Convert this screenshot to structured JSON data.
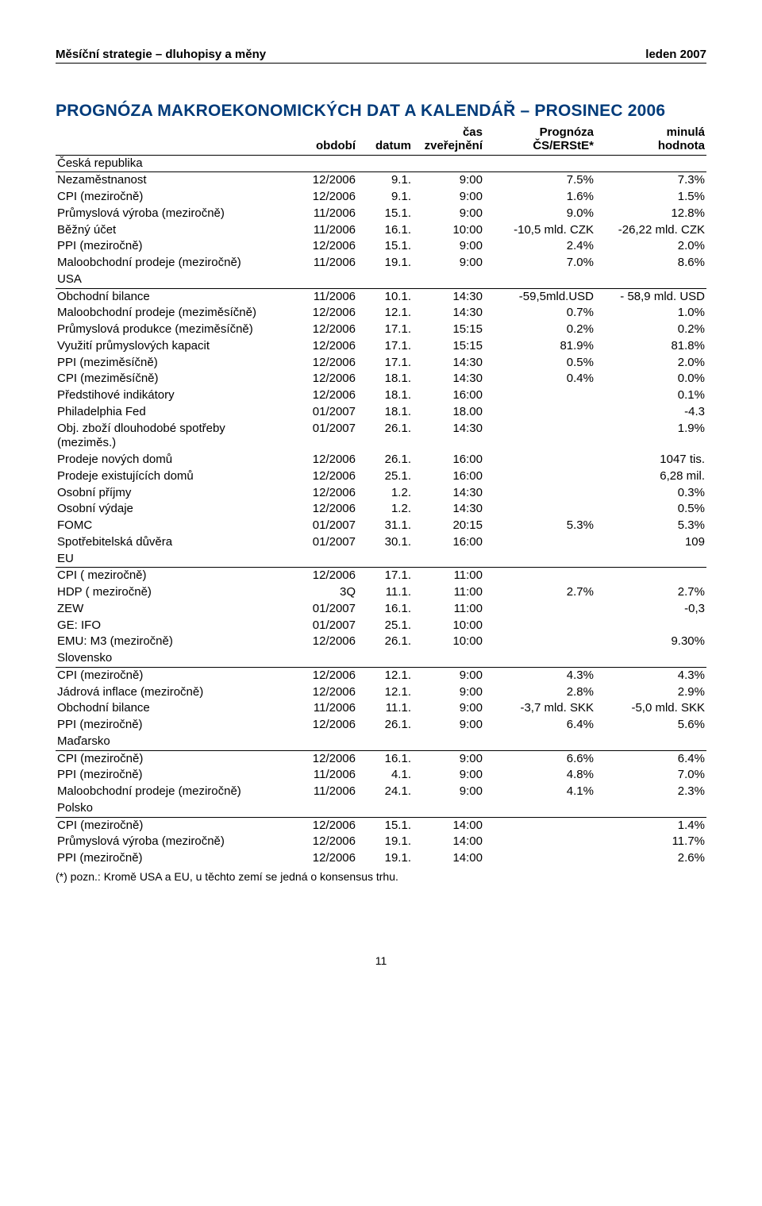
{
  "header": {
    "left": "Měsíční strategie – dluhopisy a měny",
    "right": "leden 2007"
  },
  "title": "PROGNÓZA MAKROEKONOMICKÝCH DAT A KALENDÁŘ – PROSINEC 2006",
  "table": {
    "head": {
      "c_period": "období",
      "c_date": "datum",
      "c_time_l1": "čas",
      "c_time_l2": "zveřejnění",
      "c_forecast_l1": "Prognóza",
      "c_forecast_l2": "ČS/ERStE*",
      "c_prev_l1": "minulá",
      "c_prev_l2": "hodnota"
    },
    "sections": [
      {
        "label": "Česká republika",
        "rows": [
          {
            "name": "Nezaměstnanost",
            "period": "12/2006",
            "date": "9.1.",
            "time": "9:00",
            "forecast": "7.5%",
            "prev": "7.3%"
          },
          {
            "name": "CPI (meziročně)",
            "period": "12/2006",
            "date": "9.1.",
            "time": "9:00",
            "forecast": "1.6%",
            "prev": "1.5%"
          },
          {
            "name": "Průmyslová výroba (meziročně)",
            "period": "11/2006",
            "date": "15.1.",
            "time": "9:00",
            "forecast": "9.0%",
            "prev": "12.8%"
          },
          {
            "name": "Běžný účet",
            "period": "11/2006",
            "date": "16.1.",
            "time": "10:00",
            "forecast": "-10,5 mld. CZK",
            "prev": "-26,22 mld. CZK"
          },
          {
            "name": "PPI (meziročně)",
            "period": "12/2006",
            "date": "15.1.",
            "time": "9:00",
            "forecast": "2.4%",
            "prev": "2.0%"
          },
          {
            "name": "Maloobchodní prodeje (meziročně)",
            "period": "11/2006",
            "date": "19.1.",
            "time": "9:00",
            "forecast": "7.0%",
            "prev": "8.6%"
          }
        ]
      },
      {
        "label": "USA",
        "rows": [
          {
            "name": "Obchodní bilance",
            "period": "11/2006",
            "date": "10.1.",
            "time": "14:30",
            "forecast": "-59,5mld.USD",
            "prev": "- 58,9 mld. USD"
          },
          {
            "name": "Maloobchodní prodeje (meziměsíčně)",
            "period": "12/2006",
            "date": "12.1.",
            "time": "14:30",
            "forecast": "0.7%",
            "prev": "1.0%"
          },
          {
            "name": "Průmyslová produkce (meziměsíčně)",
            "period": "12/2006",
            "date": "17.1.",
            "time": "15:15",
            "forecast": "0.2%",
            "prev": "0.2%"
          },
          {
            "name": "Využití průmyslových kapacit",
            "period": "12/2006",
            "date": "17.1.",
            "time": "15:15",
            "forecast": "81.9%",
            "prev": "81.8%"
          },
          {
            "name": "PPI (meziměsíčně)",
            "period": "12/2006",
            "date": "17.1.",
            "time": "14:30",
            "forecast": "0.5%",
            "prev": "2.0%"
          },
          {
            "name": "CPI (meziměsíčně)",
            "period": "12/2006",
            "date": "18.1.",
            "time": "14:30",
            "forecast": "0.4%",
            "prev": "0.0%"
          },
          {
            "name": "Předstihové indikátory",
            "period": "12/2006",
            "date": "18.1.",
            "time": "16:00",
            "forecast": "",
            "prev": "0.1%"
          },
          {
            "name": "Philadelphia Fed",
            "period": "01/2007",
            "date": "18.1.",
            "time": "18.00",
            "forecast": "",
            "prev": "-4.3"
          },
          {
            "name": "Obj. zboží dlouhodobé spotřeby (meziměs.)",
            "period": "01/2007",
            "date": "26.1.",
            "time": "14:30",
            "forecast": "",
            "prev": "1.9%"
          },
          {
            "name": "Prodeje nových domů",
            "period": "12/2006",
            "date": "26.1.",
            "time": "16:00",
            "forecast": "",
            "prev": "1047 tis."
          },
          {
            "name": "Prodeje existujících domů",
            "period": "12/2006",
            "date": "25.1.",
            "time": "16:00",
            "forecast": "",
            "prev": "6,28 mil."
          },
          {
            "name": "Osobní příjmy",
            "period": "12/2006",
            "date": "1.2.",
            "time": "14:30",
            "forecast": "",
            "prev": "0.3%"
          },
          {
            "name": "Osobní výdaje",
            "period": "12/2006",
            "date": "1.2.",
            "time": "14:30",
            "forecast": "",
            "prev": "0.5%"
          },
          {
            "name": "FOMC",
            "period": "01/2007",
            "date": "31.1.",
            "time": "20:15",
            "forecast": "5.3%",
            "prev": "5.3%"
          },
          {
            "name": "Spotřebitelská důvěra",
            "period": "01/2007",
            "date": "30.1.",
            "time": "16:00",
            "forecast": "",
            "prev": "109"
          }
        ]
      },
      {
        "label": "EU",
        "rows": [
          {
            "name": "CPI ( meziročně)",
            "period": "12/2006",
            "date": "17.1.",
            "time": "11:00",
            "forecast": "",
            "prev": ""
          },
          {
            "name": "HDP ( meziročně)",
            "period": "3Q",
            "date": "11.1.",
            "time": "11:00",
            "forecast": "2.7%",
            "prev": "2.7%"
          },
          {
            "name": "ZEW",
            "period": "01/2007",
            "date": "16.1.",
            "time": "11:00",
            "forecast": "",
            "prev": "-0,3"
          },
          {
            "name": "GE: IFO",
            "period": "01/2007",
            "date": "25.1.",
            "time": "10:00",
            "forecast": "",
            "prev": ""
          },
          {
            "name": "EMU: M3 (meziročně)",
            "period": "12/2006",
            "date": "26.1.",
            "time": "10:00",
            "forecast": "",
            "prev": "9.30%"
          }
        ]
      },
      {
        "label": "Slovensko",
        "rows": [
          {
            "name": "CPI (meziročně)",
            "period": "12/2006",
            "date": "12.1.",
            "time": "9:00",
            "forecast": "4.3%",
            "prev": "4.3%"
          },
          {
            "name": "Jádrová inflace (meziročně)",
            "period": "12/2006",
            "date": "12.1.",
            "time": "9:00",
            "forecast": "2.8%",
            "prev": "2.9%"
          },
          {
            "name": "Obchodní bilance",
            "period": "11/2006",
            "date": "11.1.",
            "time": "9:00",
            "forecast": "-3,7 mld. SKK",
            "prev": "-5,0 mld. SKK"
          },
          {
            "name": "PPI (meziročně)",
            "period": "12/2006",
            "date": "26.1.",
            "time": "9:00",
            "forecast": "6.4%",
            "prev": "5.6%"
          }
        ]
      },
      {
        "label": "Maďarsko",
        "rows": [
          {
            "name": "CPI (meziročně)",
            "period": "12/2006",
            "date": "16.1.",
            "time": "9:00",
            "forecast": "6.6%",
            "prev": "6.4%"
          },
          {
            "name": "PPI (meziročně)",
            "period": "11/2006",
            "date": "4.1.",
            "time": "9:00",
            "forecast": "4.8%",
            "prev": "7.0%"
          },
          {
            "name": "Maloobchodní prodeje (meziročně)",
            "period": "11/2006",
            "date": "24.1.",
            "time": "9:00",
            "forecast": "4.1%",
            "prev": "2.3%"
          }
        ]
      },
      {
        "label": "Polsko",
        "rows": [
          {
            "name": "CPI (meziročně)",
            "period": "12/2006",
            "date": "15.1.",
            "time": "14:00",
            "forecast": "",
            "prev": "1.4%"
          },
          {
            "name": "Průmyslová výroba (meziročně)",
            "period": "12/2006",
            "date": "19.1.",
            "time": "14:00",
            "forecast": "",
            "prev": "11.7%"
          },
          {
            "name": "PPI (meziročně)",
            "period": "12/2006",
            "date": "19.1.",
            "time": "14:00",
            "forecast": "",
            "prev": "2.6%"
          }
        ]
      }
    ]
  },
  "footnote": "(*) pozn.: Kromě USA a EU, u těchto zemí se jedná o konsensus trhu.",
  "page_number": "11"
}
